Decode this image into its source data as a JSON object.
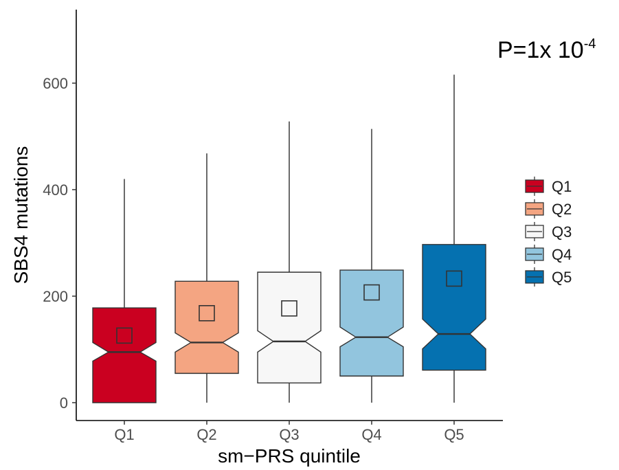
{
  "chart_data": {
    "type": "boxplot",
    "title": "",
    "xlabel": "sm−PRS quintile",
    "ylabel": "SBS4 mutations",
    "ylim": [
      -30,
      735
    ],
    "yticks": [
      0,
      200,
      400,
      600
    ],
    "grid": false,
    "notched": true,
    "legend_position": "right",
    "categories": [
      "Q1",
      "Q2",
      "Q3",
      "Q4",
      "Q5"
    ],
    "boxes": [
      {
        "name": "Q1",
        "color": "#ca0020",
        "whisker_low": 0,
        "q1": 0,
        "median": 95,
        "q3": 178,
        "whisker_high": 420,
        "mean": 126,
        "notch_low": 78,
        "notch_high": 113
      },
      {
        "name": "Q2",
        "color": "#f4a582",
        "whisker_low": 0,
        "q1": 55,
        "median": 113,
        "q3": 228,
        "whisker_high": 468,
        "mean": 168,
        "notch_low": 95,
        "notch_high": 131
      },
      {
        "name": "Q3",
        "color": "#f7f7f7",
        "whisker_low": 0,
        "q1": 37,
        "median": 115,
        "q3": 245,
        "whisker_high": 528,
        "mean": 177,
        "notch_low": 95,
        "notch_high": 135
      },
      {
        "name": "Q4",
        "color": "#92c5de",
        "whisker_low": 0,
        "q1": 50,
        "median": 123,
        "q3": 249,
        "whisker_high": 514,
        "mean": 207,
        "notch_low": 105,
        "notch_high": 142
      },
      {
        "name": "Q5",
        "color": "#0571b0",
        "whisker_low": 0,
        "q1": 61,
        "median": 129,
        "q3": 297,
        "whisker_high": 616,
        "mean": 233,
        "notch_low": 101,
        "notch_high": 157
      }
    ],
    "annotation": {
      "base": "P=1x 10",
      "exponent": "-4"
    }
  }
}
